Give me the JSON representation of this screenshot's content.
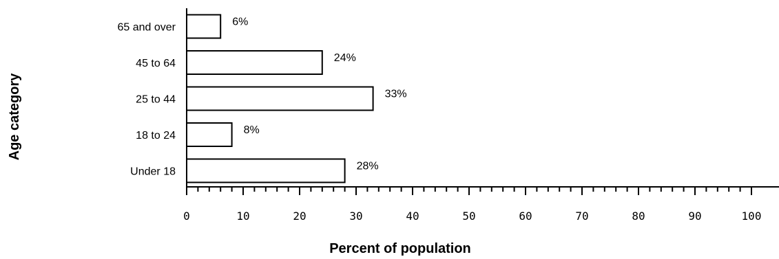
{
  "chart_data": {
    "type": "bar",
    "orientation": "horizontal",
    "categories": [
      "65 and over",
      "45 to 64",
      "25 to 44",
      "18 to 24",
      "Under 18"
    ],
    "values": [
      6,
      24,
      33,
      8,
      28
    ],
    "value_labels": [
      "6%",
      "24%",
      "33%",
      "8%",
      "28%"
    ],
    "xlabel": "Percent of population",
    "ylabel": "Age category",
    "xlim": [
      0,
      100
    ],
    "x_ticks": [
      "0",
      "10",
      "20",
      "30",
      "40",
      "50",
      "60",
      "70",
      "80",
      "90",
      "100"
    ],
    "grid": false,
    "colors": {
      "bar_fill": "#ffffff",
      "bar_stroke": "#000000",
      "axis": "#000000"
    }
  }
}
